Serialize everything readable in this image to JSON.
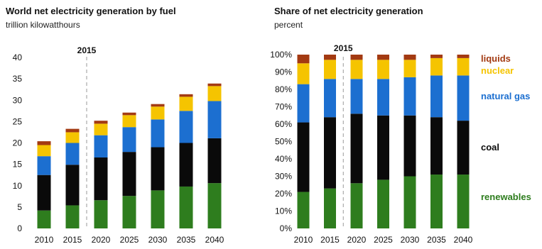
{
  "colors": {
    "renewables": "#2e7d1e",
    "coal": "#0a0a0a",
    "natural_gas": "#1c6fd0",
    "nuclear": "#f5c400",
    "liquids": "#a33a12",
    "divider": "#9a9a9a"
  },
  "chart_data": [
    {
      "type": "bar",
      "stacked": true,
      "title": "World net electricity generation by fuel",
      "subtitle": "trillion kilowatthours",
      "categories": [
        "2010",
        "2015",
        "2020",
        "2025",
        "2030",
        "2035",
        "2040"
      ],
      "marker": "2015",
      "ylim": [
        0,
        40
      ],
      "yticks": [
        0,
        5,
        10,
        15,
        20,
        25,
        30,
        35,
        40
      ],
      "grid": false,
      "series": [
        {
          "name": "renewables",
          "values": [
            4.2,
            5.4,
            6.6,
            7.6,
            8.9,
            9.8,
            10.6
          ]
        },
        {
          "name": "coal",
          "values": [
            8.3,
            9.5,
            10.0,
            10.3,
            10.1,
            10.2,
            10.5
          ]
        },
        {
          "name": "natural gas",
          "values": [
            4.4,
            5.1,
            5.2,
            5.8,
            6.5,
            7.5,
            8.7
          ]
        },
        {
          "name": "nuclear",
          "values": [
            2.6,
            2.5,
            2.7,
            2.8,
            3.0,
            3.3,
            3.5
          ]
        },
        {
          "name": "liquids",
          "values": [
            0.9,
            0.8,
            0.7,
            0.6,
            0.6,
            0.6,
            0.6
          ]
        }
      ]
    },
    {
      "type": "bar",
      "stacked": true,
      "title": "Share of net electricity generation",
      "subtitle": "percent",
      "categories": [
        "2010",
        "2015",
        "2020",
        "2025",
        "2030",
        "2035",
        "2040"
      ],
      "marker": "2015",
      "ylim": [
        0,
        100
      ],
      "yticks": [
        "0%",
        "10%",
        "20%",
        "30%",
        "40%",
        "50%",
        "60%",
        "70%",
        "80%",
        "90%",
        "100%"
      ],
      "grid": false,
      "legend": "right",
      "series": [
        {
          "name": "renewables",
          "values": [
            21,
            23,
            26,
            28,
            30,
            31,
            31
          ]
        },
        {
          "name": "coal",
          "values": [
            40,
            41,
            40,
            37,
            35,
            33,
            31
          ]
        },
        {
          "name": "natural gas",
          "values": [
            22,
            22,
            20,
            21,
            22,
            24,
            26
          ]
        },
        {
          "name": "nuclear",
          "values": [
            12,
            11,
            11,
            11,
            10,
            10,
            10
          ]
        },
        {
          "name": "liquids",
          "values": [
            5,
            3,
            3,
            3,
            3,
            2,
            2
          ]
        }
      ],
      "legend_labels": [
        "liquids",
        "nuclear",
        "natural gas",
        "coal",
        "renewables"
      ]
    }
  ]
}
